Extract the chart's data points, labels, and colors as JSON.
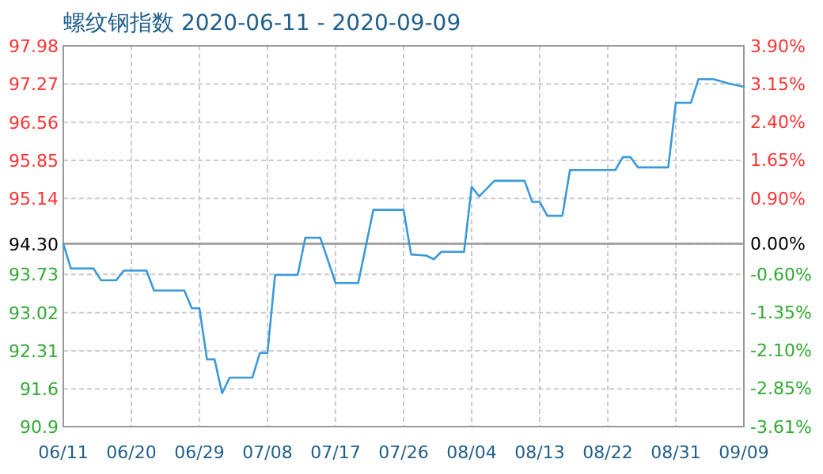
{
  "chart_data": {
    "type": "line",
    "title": "螺纹钢指数 2020-06-11 - 2020-09-09",
    "x": [
      "2020-06-11",
      "2020-06-12",
      "2020-06-15",
      "2020-06-16",
      "2020-06-18",
      "2020-06-19",
      "2020-06-22",
      "2020-06-23",
      "2020-06-27",
      "2020-06-28",
      "2020-06-29",
      "2020-06-30",
      "2020-07-01",
      "2020-07-02",
      "2020-07-03",
      "2020-07-06",
      "2020-07-07",
      "2020-07-08",
      "2020-07-09",
      "2020-07-12",
      "2020-07-13",
      "2020-07-15",
      "2020-07-17",
      "2020-07-20",
      "2020-07-22",
      "2020-07-26",
      "2020-07-27",
      "2020-07-29",
      "2020-07-30",
      "2020-07-31",
      "2020-08-03",
      "2020-08-04",
      "2020-08-05",
      "2020-08-07",
      "2020-08-11",
      "2020-08-12",
      "2020-08-13",
      "2020-08-14",
      "2020-08-16",
      "2020-08-17",
      "2020-08-23",
      "2020-08-24",
      "2020-08-25",
      "2020-08-26",
      "2020-08-30",
      "2020-08-31",
      "2020-09-02",
      "2020-09-03",
      "2020-09-05",
      "2020-09-07",
      "2020-09-09"
    ],
    "series": [
      {
        "color": "#3a9ad9",
        "values": [
          94.3,
          93.84,
          93.84,
          93.62,
          93.62,
          93.8,
          93.8,
          93.43,
          93.43,
          93.1,
          93.1,
          92.15,
          92.15,
          91.52,
          91.81,
          91.81,
          92.27,
          92.27,
          93.72,
          93.72,
          94.41,
          94.41,
          93.57,
          93.57,
          94.93,
          94.93,
          94.1,
          94.08,
          94.01,
          94.15,
          94.15,
          95.36,
          95.18,
          95.47,
          95.47,
          95.08,
          95.08,
          94.82,
          94.82,
          95.67,
          95.67,
          95.91,
          95.91,
          95.72,
          95.72,
          96.92,
          96.92,
          97.36,
          97.36,
          97.28,
          97.22
        ]
      }
    ],
    "xlim": [
      "2020-06-11",
      "2020-09-09"
    ],
    "xticks": [
      {
        "value": "2020-06-11",
        "label": "06/11"
      },
      {
        "value": "2020-06-20",
        "label": "06/20"
      },
      {
        "value": "2020-06-29",
        "label": "06/29"
      },
      {
        "value": "2020-07-08",
        "label": "07/08"
      },
      {
        "value": "2020-07-17",
        "label": "07/17"
      },
      {
        "value": "2020-07-26",
        "label": "07/26"
      },
      {
        "value": "2020-08-04",
        "label": "08/04"
      },
      {
        "value": "2020-08-13",
        "label": "08/13"
      },
      {
        "value": "2020-08-22",
        "label": "08/22"
      },
      {
        "value": "2020-08-31",
        "label": "08/31"
      },
      {
        "value": "2020-09-09",
        "label": "09/09"
      }
    ],
    "ylim": [
      90.9,
      97.98
    ],
    "yticks": [
      {
        "value": 90.9,
        "label": "90.9"
      },
      {
        "value": 91.6,
        "label": "91.6"
      },
      {
        "value": 92.31,
        "label": "92.31"
      },
      {
        "value": 93.02,
        "label": "93.02"
      },
      {
        "value": 93.73,
        "label": "93.73"
      },
      {
        "value": 94.3,
        "label": "94.30"
      },
      {
        "value": 95.14,
        "label": "95.14"
      },
      {
        "value": 95.85,
        "label": "95.85"
      },
      {
        "value": 96.56,
        "label": "96.56"
      },
      {
        "value": 97.27,
        "label": "97.27"
      },
      {
        "value": 97.98,
        "label": "97.98"
      }
    ],
    "y2lim": [
      -3.61,
      3.9
    ],
    "y2ticks": [
      {
        "value": -3.61,
        "label": "-3.61%"
      },
      {
        "value": -2.85,
        "label": "-2.85%"
      },
      {
        "value": -2.1,
        "label": "-2.10%"
      },
      {
        "value": -1.35,
        "label": "-1.35%"
      },
      {
        "value": -0.6,
        "label": "-0.60%"
      },
      {
        "value": 0,
        "label": "0.00%"
      },
      {
        "value": 0.9,
        "label": "0.90%"
      },
      {
        "value": 1.65,
        "label": "1.65%"
      },
      {
        "value": 2.4,
        "label": "2.40%"
      },
      {
        "value": 3.15,
        "label": "3.15%"
      },
      {
        "value": 3.9,
        "label": "3.90%"
      }
    ],
    "ref_lines": [
      {
        "axis": "y",
        "value": 94.3,
        "color": "#999999"
      }
    ],
    "grid": true,
    "marker": "none",
    "line_style": "solid"
  }
}
